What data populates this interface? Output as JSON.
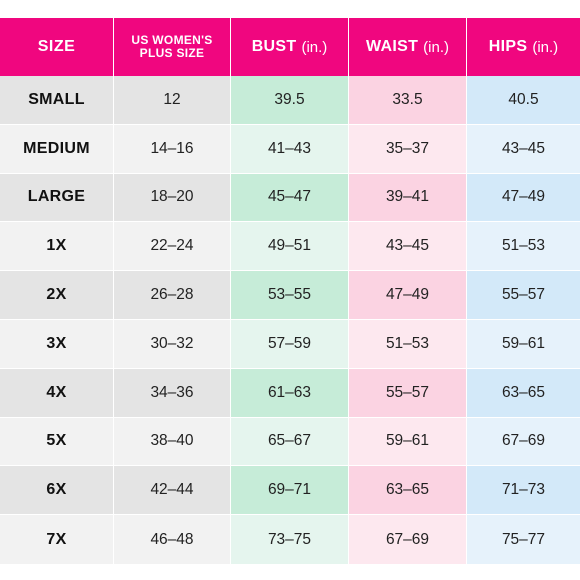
{
  "header": {
    "size": "SIZE",
    "us_line1": "US WOMEN'S",
    "us_line2": "PLUS SIZE",
    "bust": "BUST",
    "waist": "WAIST",
    "hips": "HIPS",
    "unit": "(in.)"
  },
  "colors": {
    "header_bg": "#f0067f",
    "size_light": "#f2f2f2",
    "size_dark": "#e4e4e4",
    "bust_light": "#e5f5ee",
    "bust_dark": "#c6ecd8",
    "waist_light": "#fde8ef",
    "waist_dark": "#fbd3e2",
    "hips_light": "#e6f2fb",
    "hips_dark": "#d3e9f9"
  },
  "rows": [
    {
      "size": "SMALL",
      "us": "12",
      "bust": "39.5",
      "waist": "33.5",
      "hips": "40.5"
    },
    {
      "size": "MEDIUM",
      "us": "14–16",
      "bust": "41–43",
      "waist": "35–37",
      "hips": "43–45"
    },
    {
      "size": "LARGE",
      "us": "18–20",
      "bust": "45–47",
      "waist": "39–41",
      "hips": "47–49"
    },
    {
      "size": "1X",
      "us": "22–24",
      "bust": "49–51",
      "waist": "43–45",
      "hips": "51–53"
    },
    {
      "size": "2X",
      "us": "26–28",
      "bust": "53–55",
      "waist": "47–49",
      "hips": "55–57"
    },
    {
      "size": "3X",
      "us": "30–32",
      "bust": "57–59",
      "waist": "51–53",
      "hips": "59–61"
    },
    {
      "size": "4X",
      "us": "34–36",
      "bust": "61–63",
      "waist": "55–57",
      "hips": "63–65"
    },
    {
      "size": "5X",
      "us": "38–40",
      "bust": "65–67",
      "waist": "59–61",
      "hips": "67–69"
    },
    {
      "size": "6X",
      "us": "42–44",
      "bust": "69–71",
      "waist": "63–65",
      "hips": "71–73"
    },
    {
      "size": "7X",
      "us": "46–48",
      "bust": "73–75",
      "waist": "67–69",
      "hips": "75–77"
    }
  ]
}
